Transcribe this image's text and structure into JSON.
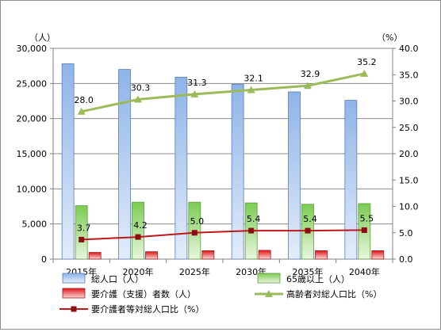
{
  "chart_data": {
    "type": "bar",
    "categories": [
      "2015年",
      "2020年",
      "2025年",
      "2030年",
      "2035年",
      "2040年"
    ],
    "y_left": {
      "unit_label": "（人）",
      "range": [
        0,
        30000
      ],
      "ticks": [
        "0",
        "5,000",
        "10,000",
        "15,000",
        "20,000",
        "25,000",
        "30,000"
      ]
    },
    "y_right": {
      "unit_label": "（%）",
      "range": [
        0,
        40
      ],
      "ticks": [
        "0.0",
        "5.0",
        "10.0",
        "15.0",
        "20.0",
        "25.0",
        "30.0",
        "35.0",
        "40.0"
      ]
    },
    "grid": "horizontal",
    "legend_position": "bottom",
    "series": [
      {
        "name": "総人口（人）",
        "kind": "bar",
        "axis": "left",
        "color": "#8fb3e6",
        "values": [
          27800,
          27000,
          25900,
          24900,
          23800,
          22600
        ]
      },
      {
        "name": "65歳以上（人）",
        "kind": "bar",
        "axis": "left",
        "color": "#8fd06b",
        "values": [
          7600,
          8100,
          8100,
          8000,
          7800,
          7900
        ]
      },
      {
        "name": "要介護（支援）者数（人）",
        "kind": "bar",
        "axis": "left",
        "color": "#e03a3a",
        "values": [
          950,
          1050,
          1200,
          1250,
          1200,
          1200
        ]
      },
      {
        "name": "高齢者対総人口比（%）",
        "kind": "line",
        "axis": "right",
        "color": "#9bbb59",
        "values": [
          28.0,
          30.3,
          31.3,
          32.1,
          32.9,
          35.2
        ],
        "labels": [
          "28.0",
          "30.3",
          "31.3",
          "32.1",
          "32.9",
          "35.2"
        ]
      },
      {
        "name": "要介護者等対総人口比（%）",
        "kind": "line",
        "axis": "right",
        "color": "#c0161b",
        "values": [
          3.7,
          4.2,
          5.0,
          5.4,
          5.4,
          5.5
        ],
        "labels": [
          "3.7",
          "4.2",
          "5.0",
          "5.4",
          "5.4",
          "5.5"
        ]
      }
    ]
  }
}
